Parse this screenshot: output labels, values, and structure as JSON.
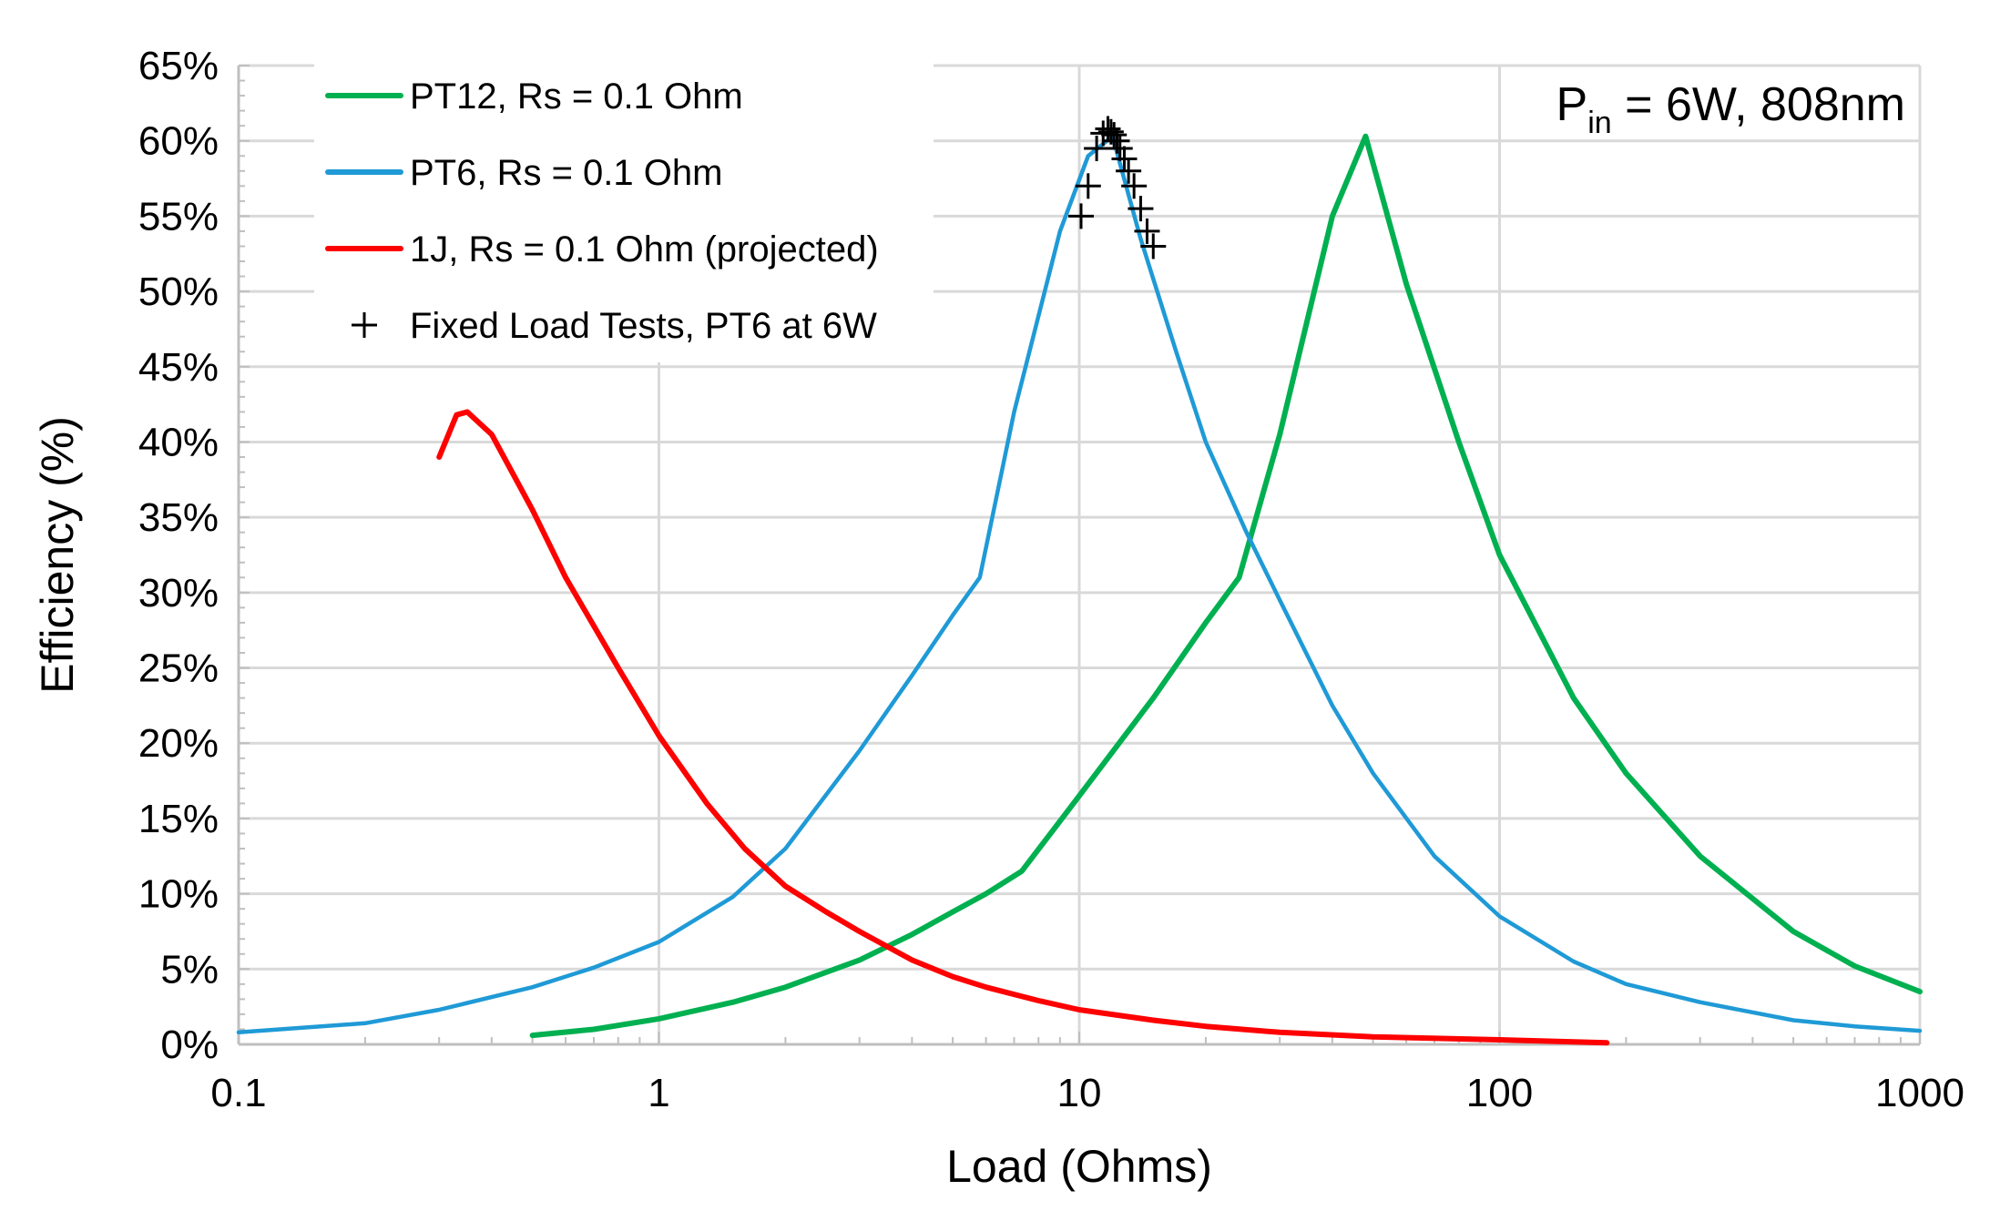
{
  "chart_data": {
    "type": "line",
    "xscale": "log",
    "xlabel": "Load (Ohms)",
    "ylabel": "Efficiency (%)",
    "xlim": [
      0.1,
      1000
    ],
    "ylim": [
      0,
      65
    ],
    "x_ticks": [
      0.1,
      1,
      10,
      100,
      1000
    ],
    "x_tick_labels": [
      "0.1",
      "1",
      "10",
      "100",
      "1000"
    ],
    "y_ticks": [
      0,
      5,
      10,
      15,
      20,
      25,
      30,
      35,
      40,
      45,
      50,
      55,
      60,
      65
    ],
    "y_tick_labels": [
      "0%",
      "5%",
      "10%",
      "15%",
      "20%",
      "25%",
      "30%",
      "35%",
      "40%",
      "45%",
      "50%",
      "55%",
      "60%",
      "65%"
    ],
    "grid": true,
    "legend_position": "top-left",
    "annotation": {
      "prefix": "P",
      "subscript": "in",
      "suffix": " = 6W, 808nm"
    },
    "series": [
      {
        "name": "PT12, Rs = 0.1 Ohm",
        "color": "#00b050",
        "style": "line",
        "x": [
          0.5,
          0.7,
          1,
          1.5,
          2,
          3,
          4,
          5,
          6,
          7.3,
          10,
          15,
          20,
          24,
          30,
          40,
          48,
          60,
          80,
          100,
          150,
          200,
          300,
          500,
          700,
          1000
        ],
        "y": [
          0.6,
          1.0,
          1.7,
          2.8,
          3.8,
          5.6,
          7.3,
          8.8,
          10,
          11.5,
          16.5,
          23,
          28,
          31,
          40.5,
          55,
          60.3,
          50.5,
          40,
          32.5,
          23,
          18,
          12.5,
          7.5,
          5.2,
          3.5
        ]
      },
      {
        "name": "PT6, Rs = 0.1 Ohm",
        "color": "#1f9ad6",
        "style": "line",
        "x": [
          0.1,
          0.2,
          0.3,
          0.5,
          0.7,
          1,
          1.5,
          2,
          3,
          4,
          5,
          5.8,
          7,
          9,
          10.5,
          12,
          14,
          17,
          20,
          25,
          30,
          40,
          50,
          70,
          100,
          150,
          200,
          300,
          500,
          700,
          1000
        ],
        "y": [
          0.8,
          1.4,
          2.3,
          3.8,
          5.1,
          6.8,
          9.8,
          13,
          19.5,
          24.5,
          28.5,
          31,
          42,
          54,
          59,
          60.3,
          53.5,
          46,
          40,
          34,
          29.5,
          22.5,
          18,
          12.5,
          8.5,
          5.5,
          4,
          2.8,
          1.6,
          1.2,
          0.9
        ]
      },
      {
        "name": "1J, Rs = 0.1 Ohm (projected)",
        "color": "#ff0000",
        "style": "line",
        "x": [
          0.3,
          0.33,
          0.35,
          0.4,
          0.5,
          0.6,
          0.8,
          1,
          1.3,
          1.6,
          2,
          2.5,
          3,
          4,
          5,
          6,
          8,
          10,
          15,
          20,
          30,
          50,
          100,
          180
        ],
        "y": [
          39,
          41.8,
          42,
          40.5,
          35.5,
          31,
          25,
          20.5,
          16,
          13,
          10.5,
          8.8,
          7.5,
          5.6,
          4.5,
          3.8,
          2.9,
          2.3,
          1.6,
          1.2,
          0.8,
          0.5,
          0.3,
          0.1
        ]
      },
      {
        "name": "Fixed Load Tests, PT6 at 6W",
        "color": "#000000",
        "style": "marker",
        "marker": "+",
        "x": [
          10.1,
          10.5,
          11.0,
          11.4,
          11.7,
          11.9,
          12.1,
          12.3,
          12.5,
          12.8,
          13.1,
          13.5,
          14.0,
          14.5,
          15.0
        ],
        "y": [
          55,
          57,
          59.5,
          60.5,
          60.8,
          60.6,
          60.4,
          60.0,
          59.5,
          58.8,
          58,
          57,
          55.5,
          54,
          53
        ]
      }
    ]
  }
}
